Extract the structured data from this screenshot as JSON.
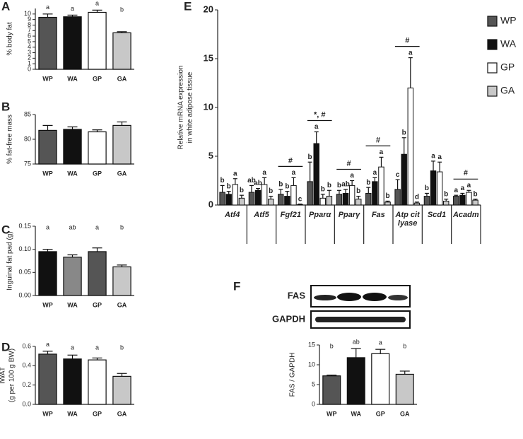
{
  "chart_data": [
    {
      "type": "bar",
      "panel": "A",
      "ylabel": "% body fat",
      "categories": [
        "WP",
        "WA",
        "GP",
        "GA"
      ],
      "values": [
        9.4,
        9.5,
        10.3,
        6.6
      ],
      "errors": [
        0.6,
        0.3,
        0.4,
        0.2
      ],
      "letters": [
        "a",
        "a",
        "a",
        "b"
      ],
      "colors": [
        "#555555",
        "#111111",
        "#ffffff",
        "#c8c8c8"
      ],
      "ylim": [
        0,
        11
      ],
      "yticks": [
        0,
        1,
        2,
        3,
        4,
        5,
        6,
        7,
        8,
        9,
        10
      ]
    },
    {
      "type": "bar",
      "panel": "B",
      "ylabel": "% fat-free mass",
      "categories": [
        "WP",
        "WA",
        "GP",
        "GA"
      ],
      "values": [
        81.8,
        82.0,
        81.5,
        82.8
      ],
      "errors": [
        1.0,
        0.5,
        0.4,
        0.7
      ],
      "colors": [
        "#555555",
        "#111111",
        "#ffffff",
        "#c8c8c8"
      ],
      "ylim": [
        75,
        85
      ],
      "yticks": [
        75,
        80,
        85
      ]
    },
    {
      "type": "bar",
      "panel": "C",
      "ylabel": "Inguinal fat pad (g)",
      "categories": [
        "WP",
        "WA",
        "GP",
        "GA"
      ],
      "values": [
        0.095,
        0.083,
        0.095,
        0.062
      ],
      "errors": [
        0.005,
        0.005,
        0.008,
        0.004
      ],
      "letters": [
        "a",
        "ab",
        "a",
        "b"
      ],
      "colors": [
        "#111111",
        "#888888",
        "#555555",
        "#c8c8c8"
      ],
      "ylim": [
        0,
        0.15
      ],
      "yticks": [
        {
          "value": 0,
          "label": "0.00"
        },
        {
          "value": 0.05,
          "label": "0.05"
        },
        {
          "value": 0.1,
          "label": "0.10"
        },
        {
          "value": 0.15,
          "label": "0.15"
        }
      ]
    },
    {
      "type": "bar",
      "panel": "D",
      "ylabel": "IWAT",
      "ylabel2": "(g per 100 g BW)",
      "categories": [
        "WP",
        "WA",
        "GP",
        "GA"
      ],
      "values": [
        0.52,
        0.47,
        0.46,
        0.29
      ],
      "errors": [
        0.03,
        0.04,
        0.02,
        0.03
      ],
      "letters": [
        "a",
        "a",
        "a",
        "b"
      ],
      "colors": [
        "#555555",
        "#111111",
        "#ffffff",
        "#c8c8c8"
      ],
      "ylim": [
        0,
        0.6
      ],
      "yticks": [
        {
          "value": 0,
          "label": "0.0"
        },
        0.2,
        0.4,
        0.6
      ]
    },
    {
      "type": "grouped_bar",
      "panel": "E",
      "ylabel": "Relative mRNA expression",
      "ylabel2": "in white adipose tissue",
      "categories": [
        "Atf4",
        "Atf5",
        "Fgf21",
        "Pparα",
        "Pparγ",
        "Fas",
        "Atp cit lyase",
        "Scd1",
        "Acadm"
      ],
      "annotations": [
        null,
        null,
        "#",
        "*, #",
        "#",
        "#",
        "#",
        null,
        "#"
      ],
      "series": [
        {
          "name": "WP",
          "color": "#555555",
          "values": [
            1.3,
            1.3,
            1.1,
            2.4,
            1.1,
            1.2,
            1.6,
            0.9,
            0.9
          ],
          "errors": [
            0.7,
            0.7,
            0.5,
            2.0,
            0.4,
            0.6,
            1.0,
            0.3,
            0.1
          ],
          "letters": [
            "b",
            "ab",
            "b",
            "b",
            "b",
            "b",
            "c",
            "b",
            "a"
          ]
        },
        {
          "name": "WA",
          "color": "#111111",
          "values": [
            1.1,
            1.5,
            0.9,
            6.3,
            1.2,
            2.4,
            5.2,
            3.5,
            1.0
          ],
          "errors": [
            0.3,
            0.2,
            0.5,
            1.2,
            0.4,
            0.4,
            1.7,
            1.0,
            0.2
          ],
          "letters": [
            "b",
            "ab",
            "b",
            "a",
            "ab",
            "a",
            "b",
            "a",
            "a"
          ]
        },
        {
          "name": "GP",
          "color": "#ffffff",
          "values": [
            2.1,
            2.1,
            2.0,
            0.7,
            2.0,
            3.9,
            12.0,
            3.4,
            1.3
          ],
          "errors": [
            0.6,
            0.7,
            0.8,
            0.4,
            0.5,
            1.0,
            3.1,
            1.0,
            0.2
          ],
          "letters": [
            "a",
            "a",
            "a",
            "b",
            "a",
            "a",
            "a",
            "a",
            "a"
          ]
        },
        {
          "name": "GA",
          "color": "#c8c8c8",
          "values": [
            0.7,
            0.6,
            0.05,
            0.9,
            0.6,
            0.3,
            0.2,
            0.4,
            0.5
          ],
          "errors": [
            0.3,
            0.3,
            0.05,
            0.6,
            0.3,
            0.1,
            0.1,
            0.2,
            0.1
          ],
          "letters": [
            "b",
            "b",
            "c",
            "b",
            "b",
            "b",
            "d",
            "b",
            "b"
          ]
        }
      ],
      "ylim": [
        0,
        20
      ],
      "yticks": [
        0,
        5,
        10,
        15,
        20
      ]
    },
    {
      "type": "bar",
      "panel": "F",
      "ylabel": "FAS / GAPDH",
      "blot_labels": [
        "FAS",
        "GAPDH"
      ],
      "categories": [
        "WP",
        "WA",
        "GP",
        "GA"
      ],
      "values": [
        7.2,
        11.8,
        12.8,
        7.6
      ],
      "errors": [
        0.2,
        2.3,
        1.1,
        0.8
      ],
      "letters": [
        "b",
        "ab",
        "a",
        "b"
      ],
      "colors": [
        "#555555",
        "#111111",
        "#ffffff",
        "#c8c8c8"
      ],
      "ylim": [
        0,
        15
      ],
      "yticks": [
        0,
        5,
        10,
        15
      ]
    }
  ]
}
